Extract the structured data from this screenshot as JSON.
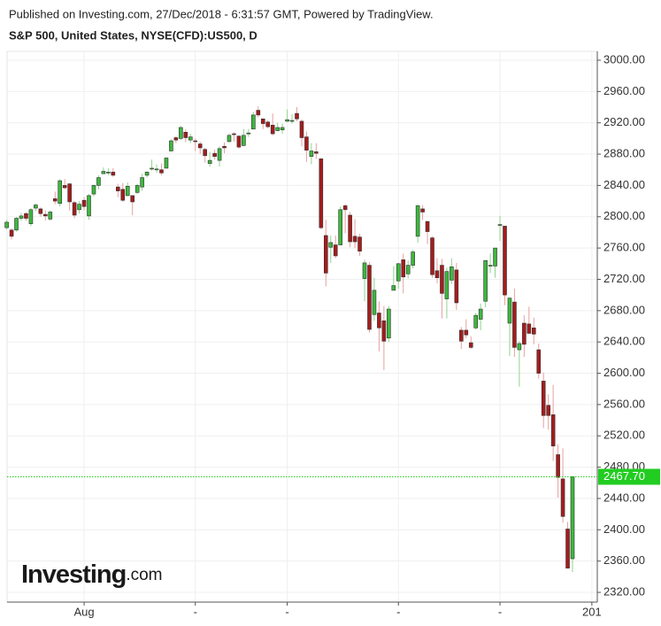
{
  "chart_data": {
    "type": "candlestick",
    "published": "Published on Investing.com, 27/Dec/2018 - 6:31:57 GMT, Powered by TradingView.",
    "title": "S&P 500, United States, NYSE(CFD):US500, D",
    "logo": {
      "main": "Investing",
      "suffix": ".com"
    },
    "up_color": "#3cb83c",
    "down_color": "#a51c1c",
    "grid": true,
    "ylim": [
      2307.6,
      3011.3
    ],
    "yticks": [
      {
        "value": 2320,
        "label": "2320.00"
      },
      {
        "value": 2360,
        "label": "2360.00"
      },
      {
        "value": 2400,
        "label": "2400.00"
      },
      {
        "value": 2440,
        "label": "2440.00"
      },
      {
        "value": 2480,
        "label": "2480.00"
      },
      {
        "value": 2520,
        "label": "2520.00"
      },
      {
        "value": 2560,
        "label": "2560.00"
      },
      {
        "value": 2600,
        "label": "2600.00"
      },
      {
        "value": 2640,
        "label": "2640.00"
      },
      {
        "value": 2680,
        "label": "2680.00"
      },
      {
        "value": 2720,
        "label": "2720.00"
      },
      {
        "value": 2760,
        "label": "2760.00"
      },
      {
        "value": 2800,
        "label": "2800.00"
      },
      {
        "value": 2840,
        "label": "2840.00"
      },
      {
        "value": 2880,
        "label": "2880.00"
      },
      {
        "value": 2920,
        "label": "2920.00"
      },
      {
        "value": 2960,
        "label": "2960.00"
      },
      {
        "value": 3000,
        "label": "3000.00"
      }
    ],
    "xticks": [
      {
        "value": 16,
        "label": "Aug"
      },
      {
        "value": 39,
        "label": "-"
      },
      {
        "value": 58,
        "label": "-"
      },
      {
        "value": 81,
        "label": "-"
      },
      {
        "value": 102,
        "label": "-"
      },
      {
        "value": 121,
        "label": "201"
      }
    ],
    "last_price": {
      "value": 2467.7,
      "label": "2467.70",
      "color": "#22cc22"
    },
    "open": [
      2786,
      2783,
      2783,
      2798,
      2804,
      2791,
      2811,
      2810,
      2803,
      2797,
      2823,
      2817,
      2840,
      2842,
      2818,
      2809,
      2821,
      2801,
      2829,
      2840,
      2855,
      2856,
      2857,
      2838,
      2835,
      2827,
      2827,
      2831,
      2838,
      2853,
      2861,
      2860,
      2860,
      2862,
      2884,
      2901,
      2900,
      2908,
      2898,
      2897,
      2893,
      2886,
      2868,
      2881,
      2872,
      2890,
      2896,
      2906,
      2903,
      2891,
      2906,
      2912,
      2936,
      2925,
      2921,
      2917,
      2910,
      2911,
      2922,
      2923,
      2932,
      2922,
      2902,
      2877,
      2883,
      2874,
      2776,
      2761,
      2764,
      2764,
      2814,
      2802,
      2775,
      2774,
      2721,
      2738,
      2675,
      2677,
      2667,
      2645,
      2706,
      2718,
      2745,
      2727,
      2738,
      2775,
      2810,
      2794,
      2773,
      2731,
      2738,
      2695,
      2719,
      2732,
      2655,
      2655,
      2639,
      2658,
      2669,
      2692,
      2738,
      2737,
      2790,
      2788,
      2664,
      2691,
      2630,
      2664,
      2663,
      2658,
      2630,
      2590,
      2559,
      2547,
      2496,
      2465,
      2401,
      2363
    ],
    "high": [
      2796,
      2785,
      2800,
      2805,
      2806,
      2811,
      2817,
      2812,
      2808,
      2808,
      2832,
      2848,
      2848,
      2843,
      2820,
      2820,
      2825,
      2829,
      2841,
      2853,
      2863,
      2862,
      2862,
      2842,
      2843,
      2844,
      2827,
      2842,
      2855,
      2858,
      2873,
      2867,
      2868,
      2876,
      2899,
      2903,
      2916,
      2912,
      2906,
      2900,
      2896,
      2888,
      2883,
      2886,
      2890,
      2895,
      2906,
      2908,
      2904,
      2912,
      2912,
      2934,
      2941,
      2925,
      2923,
      2932,
      2920,
      2919,
      2937,
      2931,
      2940,
      2924,
      2909,
      2894,
      2894,
      2874,
      2796,
      2776,
      2776,
      2813,
      2816,
      2806,
      2797,
      2778,
      2745,
      2742,
      2722,
      2692,
      2686,
      2686,
      2737,
      2741,
      2753,
      2744,
      2758,
      2816,
      2815,
      2794,
      2775,
      2747,
      2746,
      2735,
      2747,
      2741,
      2659,
      2669,
      2647,
      2677,
      2689,
      2744,
      2753,
      2760,
      2801,
      2788,
      2697,
      2708,
      2641,
      2674,
      2685,
      2671,
      2638,
      2601,
      2573,
      2585,
      2509,
      2504,
      2410,
      2469
    ],
    "low": [
      2784,
      2771,
      2781,
      2795,
      2795,
      2788,
      2807,
      2800,
      2795,
      2795,
      2816,
      2813,
      2835,
      2808,
      2798,
      2804,
      2808,
      2796,
      2826,
      2835,
      2855,
      2853,
      2851,
      2825,
      2819,
      2826,
      2802,
      2829,
      2833,
      2850,
      2859,
      2856,
      2853,
      2862,
      2884,
      2894,
      2898,
      2895,
      2894,
      2884,
      2880,
      2869,
      2864,
      2873,
      2864,
      2881,
      2895,
      2896,
      2887,
      2890,
      2902,
      2912,
      2927,
      2912,
      2913,
      2904,
      2909,
      2906,
      2921,
      2919,
      2922,
      2890,
      2870,
      2867,
      2874,
      2784,
      2711,
      2741,
      2747,
      2764,
      2779,
      2761,
      2760,
      2750,
      2692,
      2652,
      2667,
      2628,
      2604,
      2640,
      2706,
      2708,
      2702,
      2721,
      2734,
      2767,
      2796,
      2765,
      2722,
      2715,
      2670,
      2670,
      2714,
      2681,
      2631,
      2645,
      2631,
      2656,
      2655,
      2684,
      2728,
      2722,
      2769,
      2687,
      2622,
      2621,
      2583,
      2621,
      2650,
      2637,
      2593,
      2530,
      2528,
      2488,
      2441,
      2409,
      2351,
      2346
    ],
    "close": [
      2793,
      2775,
      2798,
      2801,
      2798,
      2809,
      2815,
      2804,
      2801,
      2806,
      2820,
      2846,
      2837,
      2819,
      2802,
      2816,
      2813,
      2827,
      2840,
      2850,
      2858,
      2857,
      2853,
      2833,
      2821,
      2839,
      2819,
      2840,
      2850,
      2857,
      2862,
      2861,
      2856,
      2875,
      2897,
      2898,
      2914,
      2901,
      2902,
      2896,
      2888,
      2878,
      2872,
      2877,
      2887,
      2888,
      2904,
      2905,
      2889,
      2904,
      2907,
      2930,
      2930,
      2919,
      2915,
      2906,
      2914,
      2914,
      2924,
      2923,
      2925,
      2901,
      2885,
      2884,
      2881,
      2786,
      2728,
      2767,
      2750,
      2809,
      2809,
      2768,
      2768,
      2756,
      2741,
      2656,
      2706,
      2658,
      2641,
      2682,
      2712,
      2740,
      2723,
      2738,
      2755,
      2814,
      2806,
      2781,
      2726,
      2722,
      2702,
      2730,
      2736,
      2690,
      2641,
      2649,
      2633,
      2674,
      2682,
      2744,
      2738,
      2760,
      2790,
      2700,
      2696,
      2633,
      2638,
      2637,
      2651,
      2650,
      2600,
      2546,
      2546,
      2507,
      2467,
      2417,
      2351,
      2467.7
    ]
  }
}
